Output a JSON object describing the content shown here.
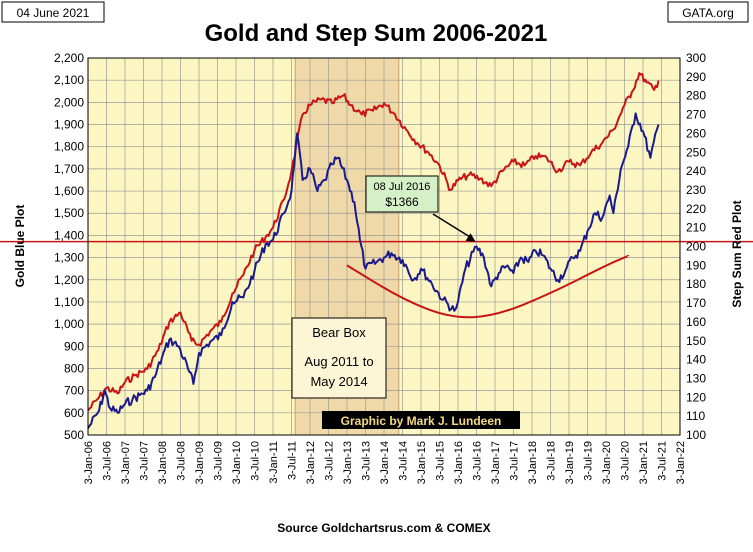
{
  "header": {
    "date_label": "04 June 2021",
    "site_label": "GATA.org",
    "source_label": "Source  Goldchartsrus.com  & COMEX"
  },
  "chart_data": {
    "type": "line",
    "title": "Gold and Step Sum 2006-2021",
    "y_left_label": "Gold    Blue Plot",
    "y_right_label": "Step Sum    Red Plot",
    "y_left_range": [
      500,
      2200
    ],
    "y_left_ticks": [
      "500",
      "600",
      "700",
      "800",
      "900",
      "1,000",
      "1,100",
      "1,200",
      "1,300",
      "1,400",
      "1,500",
      "1,600",
      "1,700",
      "1,800",
      "1,900",
      "2,000",
      "2,100",
      "2,200"
    ],
    "y_right_range": [
      100,
      300
    ],
    "y_right_ticks": [
      "100",
      "110",
      "120",
      "130",
      "140",
      "150",
      "160",
      "170",
      "180",
      "190",
      "200",
      "210",
      "220",
      "230",
      "240",
      "250",
      "260",
      "270",
      "280",
      "290",
      "300"
    ],
    "x_range": [
      2006.0,
      2022.0
    ],
    "x_ticks": [
      "3-Jan-06",
      "3-Jul-06",
      "3-Jan-07",
      "3-Jul-07",
      "3-Jan-08",
      "3-Jul-08",
      "3-Jan-09",
      "3-Jul-09",
      "3-Jan-10",
      "3-Jul-10",
      "3-Jan-11",
      "3-Jul-11",
      "3-Jan-12",
      "3-Jul-12",
      "3-Jan-13",
      "3-Jul-13",
      "3-Jan-14",
      "3-Jul-14",
      "3-Jan-15",
      "3-Jul-15",
      "3-Jan-16",
      "3-Jul-16",
      "3-Jan-17",
      "3-Jul-17",
      "3-Jan-18",
      "3-Jul-18",
      "3-Jan-19",
      "3-Jul-19",
      "3-Jan-20",
      "3-Jul-20",
      "3-Jan-21",
      "3-Jul-21",
      "3-Jan-22"
    ],
    "grid": true,
    "series": [
      {
        "name": "Gold (Blue Plot)",
        "axis": "left",
        "color": "#1a1a8c",
        "x": [
          2006.0,
          2006.3,
          2006.45,
          2006.6,
          2006.8,
          2007.0,
          2007.2,
          2007.4,
          2007.6,
          2007.8,
          2008.0,
          2008.2,
          2008.45,
          2008.7,
          2008.85,
          2009.0,
          2009.3,
          2009.6,
          2009.9,
          2010.2,
          2010.5,
          2010.8,
          2011.0,
          2011.3,
          2011.5,
          2011.65,
          2011.8,
          2012.0,
          2012.2,
          2012.4,
          2012.6,
          2012.75,
          2013.0,
          2013.2,
          2013.35,
          2013.5,
          2013.8,
          2014.0,
          2014.2,
          2014.5,
          2014.8,
          2015.0,
          2015.3,
          2015.6,
          2015.9,
          2016.0,
          2016.2,
          2016.5,
          2016.7,
          2016.9,
          2017.1,
          2017.3,
          2017.5,
          2017.7,
          2017.9,
          2018.1,
          2018.3,
          2018.5,
          2018.7,
          2018.9,
          2019.1,
          2019.3,
          2019.5,
          2019.7,
          2019.9,
          2020.1,
          2020.2,
          2020.4,
          2020.6,
          2020.8,
          2021.0,
          2021.2,
          2021.42
        ],
        "values": [
          530,
          610,
          700,
          620,
          600,
          640,
          660,
          680,
          700,
          760,
          850,
          930,
          900,
          800,
          730,
          870,
          920,
          950,
          1100,
          1120,
          1240,
          1360,
          1380,
          1500,
          1600,
          1860,
          1650,
          1700,
          1600,
          1650,
          1720,
          1750,
          1650,
          1550,
          1380,
          1250,
          1280,
          1300,
          1320,
          1290,
          1200,
          1250,
          1180,
          1110,
          1060,
          1100,
          1250,
          1350,
          1300,
          1170,
          1230,
          1260,
          1230,
          1300,
          1280,
          1330,
          1310,
          1250,
          1200,
          1240,
          1300,
          1330,
          1420,
          1500,
          1480,
          1580,
          1500,
          1700,
          1800,
          1950,
          1870,
          1750,
          1900
        ]
      },
      {
        "name": "Step Sum (Red Plot)",
        "axis": "right",
        "color": "#c81414",
        "x": [
          2006.0,
          2006.3,
          2006.5,
          2006.8,
          2007.0,
          2007.3,
          2007.6,
          2007.9,
          2008.2,
          2008.5,
          2008.8,
          2009.0,
          2009.3,
          2009.6,
          2009.9,
          2010.2,
          2010.5,
          2010.8,
          2011.0,
          2011.3,
          2011.5,
          2011.8,
          2012.0,
          2012.3,
          2012.6,
          2012.9,
          2013.1,
          2013.4,
          2013.7,
          2014.0,
          2014.3,
          2014.6,
          2014.9,
          2015.2,
          2015.5,
          2015.8,
          2016.0,
          2016.3,
          2016.6,
          2016.9,
          2017.2,
          2017.5,
          2017.8,
          2018.1,
          2018.4,
          2018.7,
          2019.0,
          2019.3,
          2019.6,
          2019.9,
          2020.2,
          2020.5,
          2020.7,
          2020.9,
          2021.1,
          2021.3,
          2021.42
        ],
        "values": [
          113,
          120,
          125,
          122,
          128,
          132,
          135,
          145,
          160,
          165,
          150,
          148,
          155,
          160,
          175,
          185,
          198,
          205,
          210,
          225,
          240,
          270,
          275,
          278,
          276,
          280,
          275,
          270,
          272,
          276,
          270,
          262,
          255,
          250,
          243,
          230,
          235,
          238,
          236,
          232,
          240,
          245,
          243,
          248,
          247,
          240,
          245,
          243,
          250,
          255,
          262,
          275,
          282,
          292,
          287,
          283,
          288
        ]
      }
    ],
    "annotations": {
      "bear_box_title": "Bear Box",
      "bear_box_line2": "Aug 2011  to",
      "bear_box_line3": "May 2014",
      "bear_box_range": [
        2011.6,
        2014.4
      ],
      "callout_line1": "08 Jul 2016",
      "callout_line2": "$1366",
      "callout_point": [
        2016.52,
        1366
      ],
      "reference_line_gold": 1372,
      "graphic_credit": "Graphic by Mark J. Lundeen",
      "arc_x": [
        2013.0,
        2014.5,
        2015.8,
        2017.0,
        2018.5,
        2020.0,
        2020.6
      ],
      "arc_values_right": [
        190,
        172,
        162,
        163,
        175,
        190,
        195
      ]
    }
  }
}
